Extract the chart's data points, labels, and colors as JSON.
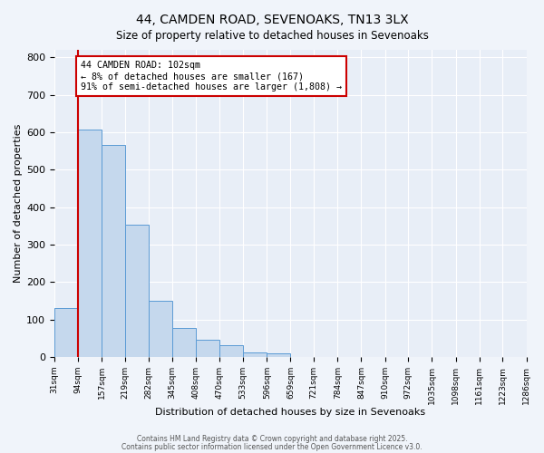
{
  "title1": "44, CAMDEN ROAD, SEVENOAKS, TN13 3LX",
  "title2": "Size of property relative to detached houses in Sevenoaks",
  "xlabel": "Distribution of detached houses by size in Sevenoaks",
  "ylabel": "Number of detached properties",
  "bar_heights": [
    130,
    608,
    565,
    352,
    150,
    77,
    47,
    32,
    13,
    10,
    1,
    0,
    0,
    0,
    0,
    0,
    0,
    0,
    0,
    0
  ],
  "bin_edges": [
    31,
    94,
    157,
    219,
    282,
    345,
    408,
    470,
    533,
    596,
    659,
    721,
    784,
    847,
    910,
    972,
    1035,
    1098,
    1161,
    1223,
    1286
  ],
  "tick_labels": [
    "31sqm",
    "94sqm",
    "157sqm",
    "219sqm",
    "282sqm",
    "345sqm",
    "408sqm",
    "470sqm",
    "533sqm",
    "596sqm",
    "659sqm",
    "721sqm",
    "784sqm",
    "847sqm",
    "910sqm",
    "972sqm",
    "1035sqm",
    "1098sqm",
    "1161sqm",
    "1223sqm",
    "1286sqm"
  ],
  "bar_color": "#c5d8ed",
  "bar_edge_color": "#5b9bd5",
  "property_line_x": 94,
  "property_line_color": "#cc0000",
  "annotation_title": "44 CAMDEN ROAD: 102sqm",
  "annotation_line1": "← 8% of detached houses are smaller (167)",
  "annotation_line2": "91% of semi-detached houses are larger (1,808) →",
  "annotation_box_color": "#cc0000",
  "ylim": [
    0,
    820
  ],
  "yticks": [
    0,
    100,
    200,
    300,
    400,
    500,
    600,
    700,
    800
  ],
  "footer1": "Contains HM Land Registry data © Crown copyright and database right 2025.",
  "footer2": "Contains public sector information licensed under the Open Government Licence v3.0.",
  "bg_color": "#f0f4fa",
  "plot_bg_color": "#e8eef7"
}
